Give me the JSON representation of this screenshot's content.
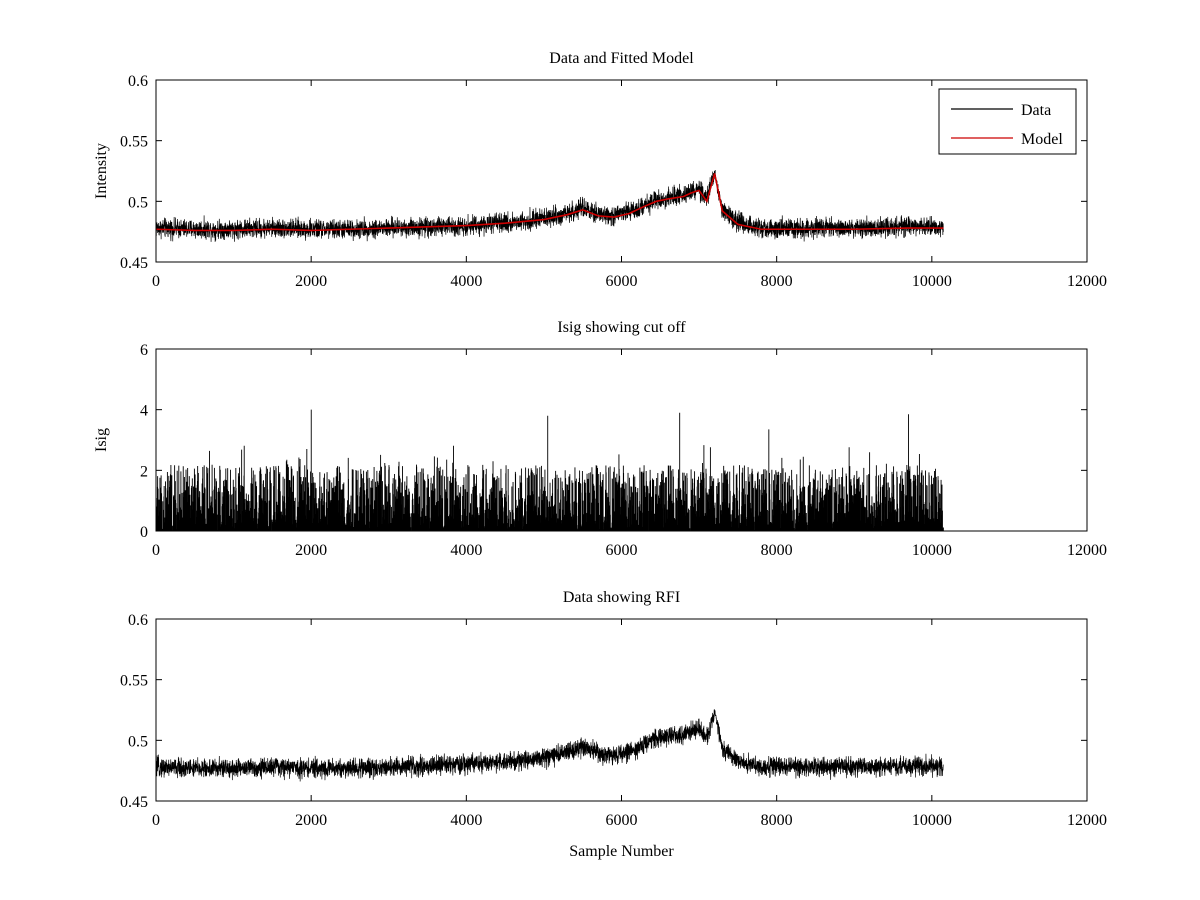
{
  "figure": {
    "background": "#ffffff",
    "xlabel": "Sample Number"
  },
  "chart_data": [
    {
      "type": "line",
      "title": "Data and Fitted Model",
      "xlabel": "",
      "ylabel": "Intensity",
      "xlim": [
        0,
        12000
      ],
      "ylim": [
        0.45,
        0.6
      ],
      "xticks": [
        "0",
        "2000",
        "4000",
        "6000",
        "8000",
        "10000",
        "12000"
      ],
      "yticks": [
        "0.45",
        "0.5",
        "0.55",
        "0.6"
      ],
      "grid": false,
      "legend": {
        "placement": "top-right",
        "entries": [
          "Data",
          "Model"
        ]
      },
      "series": [
        {
          "name": "Data",
          "color": "#000000",
          "style": "dense-noise",
          "n_points": 10150,
          "noise_band": 0.006,
          "x": [
            0,
            500,
            1000,
            1500,
            2000,
            2500,
            3000,
            3500,
            4000,
            4500,
            5000,
            5300,
            5500,
            5700,
            5900,
            6100,
            6300,
            6450,
            6600,
            6800,
            6900,
            7000,
            7100,
            7200,
            7300,
            7500,
            7800,
            8500,
            9000,
            9700,
            10150
          ],
          "values": [
            0.478,
            0.477,
            0.477,
            0.478,
            0.477,
            0.477,
            0.478,
            0.479,
            0.48,
            0.482,
            0.486,
            0.49,
            0.494,
            0.489,
            0.488,
            0.491,
            0.497,
            0.501,
            0.503,
            0.505,
            0.508,
            0.51,
            0.501,
            0.523,
            0.494,
            0.483,
            0.478,
            0.478,
            0.478,
            0.479,
            0.479
          ]
        },
        {
          "name": "Model",
          "color": "#cc0000",
          "style": "line",
          "x": [
            0,
            500,
            1000,
            1500,
            2000,
            2500,
            3000,
            3500,
            4000,
            4500,
            5000,
            5300,
            5500,
            5700,
            5900,
            6100,
            6300,
            6450,
            6600,
            6800,
            6900,
            7000,
            7100,
            7200,
            7300,
            7500,
            7800,
            8500,
            9000,
            9700,
            10150
          ],
          "values": [
            0.477,
            0.476,
            0.476,
            0.477,
            0.476,
            0.477,
            0.478,
            0.479,
            0.48,
            0.482,
            0.485,
            0.489,
            0.493,
            0.488,
            0.487,
            0.49,
            0.496,
            0.5,
            0.502,
            0.504,
            0.507,
            0.509,
            0.5,
            0.523,
            0.492,
            0.481,
            0.477,
            0.477,
            0.477,
            0.478,
            0.478
          ]
        }
      ]
    },
    {
      "type": "line",
      "title": "Isig showing cut off",
      "xlabel": "",
      "ylabel": "Isig",
      "xlim": [
        0,
        12000
      ],
      "ylim": [
        0,
        6
      ],
      "xticks": [
        "0",
        "2000",
        "4000",
        "6000",
        "8000",
        "10000",
        "12000"
      ],
      "yticks": [
        "0",
        "2",
        "4",
        "6"
      ],
      "grid": false,
      "series": [
        {
          "color": "#000000",
          "style": "dense-spikes",
          "n_points": 10150,
          "typical_max": 1.9,
          "peaks": [
            {
              "x": 2000,
              "value": 4.0
            },
            {
              "x": 5050,
              "value": 3.8
            },
            {
              "x": 6750,
              "value": 3.9
            },
            {
              "x": 7900,
              "value": 3.35
            },
            {
              "x": 9700,
              "value": 3.85
            }
          ]
        }
      ]
    },
    {
      "type": "line",
      "title": "Data showing RFI",
      "xlabel": "Sample Number",
      "ylabel": "",
      "xlim": [
        0,
        12000
      ],
      "ylim": [
        0.45,
        0.6
      ],
      "xticks": [
        "0",
        "2000",
        "4000",
        "6000",
        "8000",
        "10000",
        "12000"
      ],
      "yticks": [
        "0.45",
        "0.5",
        "0.55",
        "0.6"
      ],
      "grid": false,
      "series": [
        {
          "color": "#000000",
          "style": "dense-noise",
          "n_points": 10150,
          "noise_band": 0.006,
          "x": [
            0,
            500,
            1000,
            1500,
            2000,
            2500,
            3000,
            3500,
            4000,
            4500,
            5000,
            5300,
            5500,
            5700,
            5900,
            6100,
            6300,
            6450,
            6600,
            6800,
            6900,
            7000,
            7100,
            7200,
            7300,
            7500,
            7800,
            8500,
            9000,
            9700,
            10150
          ],
          "values": [
            0.478,
            0.477,
            0.477,
            0.478,
            0.477,
            0.477,
            0.478,
            0.479,
            0.48,
            0.482,
            0.486,
            0.49,
            0.494,
            0.489,
            0.488,
            0.491,
            0.497,
            0.501,
            0.503,
            0.505,
            0.508,
            0.51,
            0.501,
            0.523,
            0.494,
            0.483,
            0.478,
            0.478,
            0.478,
            0.479,
            0.479
          ]
        }
      ]
    }
  ]
}
